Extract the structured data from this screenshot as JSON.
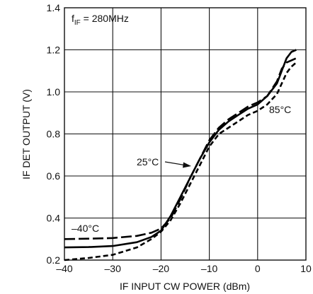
{
  "chart_data": {
    "type": "line",
    "xlabel": "IF INPUT CW POWER (dBm)",
    "ylabel": "IF DET OUTPUT (V)",
    "xlim": [
      -40,
      10
    ],
    "ylim": [
      0.2,
      1.4
    ],
    "xticks": [
      -40,
      -30,
      -20,
      -10,
      0,
      10
    ],
    "yticks": [
      0.2,
      0.4,
      0.6,
      0.8,
      1.0,
      1.2,
      1.4
    ],
    "xtick_labels": [
      "–40",
      "–30",
      "–20",
      "–10",
      "0",
      "10"
    ],
    "ytick_labels": [
      "0.2",
      "0.4",
      "0.6",
      "0.8",
      "1.0",
      "1.2",
      "1.4"
    ],
    "grid": true,
    "annotations": {
      "condition_prefix": "f",
      "condition_subscript": "IF",
      "condition_value": " = 280MHz",
      "label_minus40": "–40°C",
      "label_25": "25°C",
      "label_85": "85°C"
    },
    "series": [
      {
        "line_style": "long-dash",
        "x": [
          -40,
          -35,
          -30,
          -25,
          -22,
          -20,
          -18,
          -16,
          -14,
          -12,
          -10,
          -8,
          -6,
          -4,
          -2,
          0,
          2,
          4,
          5,
          6,
          7,
          8
        ],
        "y": [
          0.3,
          0.302,
          0.305,
          0.315,
          0.33,
          0.35,
          0.4,
          0.49,
          0.59,
          0.68,
          0.77,
          0.83,
          0.87,
          0.9,
          0.93,
          0.95,
          0.98,
          1.05,
          1.11,
          1.14,
          1.15,
          1.16
        ]
      },
      {
        "line_style": "solid",
        "x": [
          -40,
          -35,
          -30,
          -25,
          -22,
          -20,
          -18,
          -16,
          -14,
          -12,
          -10,
          -8,
          -6,
          -4,
          -2,
          0,
          2,
          4,
          5,
          6,
          7,
          8
        ],
        "y": [
          0.26,
          0.262,
          0.267,
          0.285,
          0.31,
          0.34,
          0.41,
          0.5,
          0.59,
          0.68,
          0.76,
          0.82,
          0.86,
          0.89,
          0.92,
          0.94,
          0.98,
          1.04,
          1.1,
          1.16,
          1.19,
          1.2
        ]
      },
      {
        "line_style": "short-dash",
        "x": [
          -40,
          -35,
          -30,
          -25,
          -22,
          -20,
          -18,
          -16,
          -14,
          -12,
          -10,
          -8,
          -6,
          -4,
          -2,
          0,
          2,
          4,
          5,
          6,
          7,
          8
        ],
        "y": [
          0.2,
          0.21,
          0.225,
          0.26,
          0.3,
          0.335,
          0.39,
          0.47,
          0.56,
          0.65,
          0.74,
          0.8,
          0.83,
          0.86,
          0.89,
          0.91,
          0.94,
          0.99,
          1.04,
          1.09,
          1.12,
          1.14
        ]
      }
    ]
  }
}
